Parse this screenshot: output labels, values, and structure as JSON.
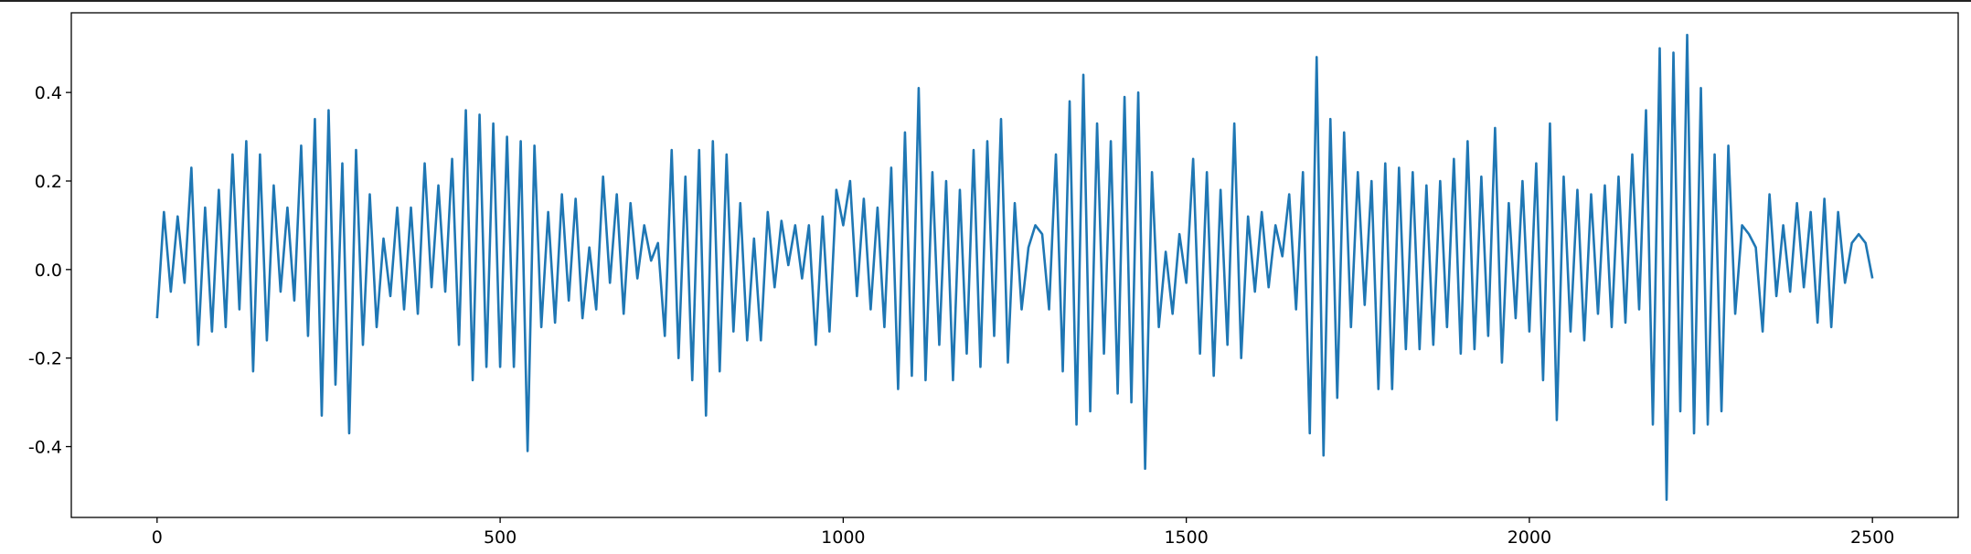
{
  "chart_data": {
    "type": "line",
    "color": "#1f77b4",
    "x": [
      0,
      10,
      20,
      30,
      40,
      50,
      60,
      70,
      80,
      90,
      100,
      110,
      120,
      130,
      140,
      150,
      160,
      170,
      180,
      190,
      200,
      210,
      220,
      230,
      240,
      250,
      260,
      270,
      280,
      290,
      300,
      310,
      320,
      330,
      340,
      350,
      360,
      370,
      380,
      390,
      400,
      410,
      420,
      430,
      440,
      450,
      460,
      470,
      480,
      490,
      500,
      510,
      520,
      530,
      540,
      550,
      560,
      570,
      580,
      590,
      600,
      610,
      620,
      630,
      640,
      650,
      660,
      670,
      680,
      690,
      700,
      710,
      720,
      730,
      740,
      750,
      760,
      770,
      780,
      790,
      800,
      810,
      820,
      830,
      840,
      850,
      860,
      870,
      880,
      890,
      900,
      910,
      920,
      930,
      940,
      950,
      960,
      970,
      980,
      990,
      1000,
      1010,
      1020,
      1030,
      1040,
      1050,
      1060,
      1070,
      1080,
      1090,
      1100,
      1110,
      1120,
      1130,
      1140,
      1150,
      1160,
      1170,
      1180,
      1190,
      1200,
      1210,
      1220,
      1230,
      1240,
      1250,
      1260,
      1270,
      1280,
      1290,
      1300,
      1310,
      1320,
      1330,
      1340,
      1350,
      1360,
      1370,
      1380,
      1390,
      1400,
      1410,
      1420,
      1430,
      1440,
      1450,
      1460,
      1470,
      1480,
      1490,
      1500,
      1510,
      1520,
      1530,
      1540,
      1550,
      1560,
      1570,
      1580,
      1590,
      1600,
      1610,
      1620,
      1630,
      1640,
      1650,
      1660,
      1670,
      1680,
      1690,
      1700,
      1710,
      1720,
      1730,
      1740,
      1750,
      1760,
      1770,
      1780,
      1790,
      1800,
      1810,
      1820,
      1830,
      1840,
      1850,
      1860,
      1870,
      1880,
      1890,
      1900,
      1910,
      1920,
      1930,
      1940,
      1950,
      1960,
      1970,
      1980,
      1990,
      2000,
      2010,
      2020,
      2030,
      2040,
      2050,
      2060,
      2070,
      2080,
      2090,
      2100,
      2110,
      2120,
      2130,
      2140,
      2150,
      2160,
      2170,
      2180,
      2190,
      2200,
      2210,
      2220,
      2230,
      2240,
      2250,
      2260,
      2270,
      2280,
      2290,
      2300,
      2310,
      2320,
      2330,
      2340,
      2350,
      2360,
      2370,
      2380,
      2390,
      2400,
      2410,
      2420,
      2430,
      2440,
      2450,
      2460,
      2470,
      2480,
      2490,
      2500
    ],
    "values": [
      -0.11,
      0.13,
      -0.05,
      0.12,
      -0.03,
      0.23,
      -0.17,
      0.14,
      -0.14,
      0.18,
      -0.13,
      0.26,
      -0.09,
      0.29,
      -0.23,
      0.26,
      -0.16,
      0.19,
      -0.05,
      0.14,
      -0.07,
      0.28,
      -0.15,
      0.34,
      -0.33,
      0.36,
      -0.26,
      0.24,
      -0.37,
      0.27,
      -0.17,
      0.17,
      -0.13,
      0.07,
      -0.06,
      0.14,
      -0.09,
      0.14,
      -0.1,
      0.24,
      -0.04,
      0.19,
      -0.05,
      0.25,
      -0.17,
      0.36,
      -0.25,
      0.35,
      -0.22,
      0.33,
      -0.22,
      0.3,
      -0.22,
      0.29,
      -0.41,
      0.28,
      -0.13,
      0.13,
      -0.12,
      0.17,
      -0.07,
      0.16,
      -0.11,
      0.05,
      -0.09,
      0.21,
      -0.03,
      0.17,
      -0.1,
      0.15,
      -0.02,
      0.1,
      0.02,
      0.06,
      -0.15,
      0.27,
      -0.2,
      0.21,
      -0.25,
      0.27,
      -0.33,
      0.29,
      -0.23,
      0.26,
      -0.14,
      0.15,
      -0.16,
      0.07,
      -0.16,
      0.13,
      -0.04,
      0.11,
      0.01,
      0.1,
      -0.02,
      0.1,
      -0.17,
      0.12,
      -0.14,
      0.18,
      0.1,
      0.2,
      -0.06,
      0.16,
      -0.09,
      0.14,
      -0.13,
      0.23,
      -0.27,
      0.31,
      -0.24,
      0.41,
      -0.25,
      0.22,
      -0.17,
      0.2,
      -0.25,
      0.18,
      -0.19,
      0.27,
      -0.22,
      0.29,
      -0.15,
      0.34,
      -0.21,
      0.15,
      -0.09,
      0.05,
      0.1,
      0.08,
      -0.09,
      0.26,
      -0.23,
      0.38,
      -0.35,
      0.44,
      -0.32,
      0.33,
      -0.19,
      0.29,
      -0.28,
      0.39,
      -0.3,
      0.4,
      -0.45,
      0.22,
      -0.13,
      0.04,
      -0.1,
      0.08,
      -0.03,
      0.25,
      -0.19,
      0.22,
      -0.24,
      0.18,
      -0.17,
      0.33,
      -0.2,
      0.12,
      -0.05,
      0.13,
      -0.04,
      0.1,
      0.03,
      0.17,
      -0.09,
      0.22,
      -0.37,
      0.48,
      -0.42,
      0.34,
      -0.29,
      0.31,
      -0.13,
      0.22,
      -0.08,
      0.2,
      -0.27,
      0.24,
      -0.27,
      0.23,
      -0.18,
      0.22,
      -0.18,
      0.19,
      -0.17,
      0.2,
      -0.13,
      0.25,
      -0.19,
      0.29,
      -0.18,
      0.21,
      -0.15,
      0.32,
      -0.21,
      0.15,
      -0.11,
      0.2,
      -0.14,
      0.24,
      -0.25,
      0.33,
      -0.34,
      0.21,
      -0.14,
      0.18,
      -0.16,
      0.17,
      -0.1,
      0.19,
      -0.13,
      0.21,
      -0.12,
      0.26,
      -0.09,
      0.36,
      -0.35,
      0.5,
      -0.52,
      0.49,
      -0.32,
      0.53,
      -0.37,
      0.41,
      -0.35,
      0.26,
      -0.32,
      0.28,
      -0.1,
      0.1,
      0.08,
      0.05,
      -0.14,
      0.17,
      -0.06,
      0.1,
      -0.05,
      0.15,
      -0.04,
      0.13,
      -0.12,
      0.16,
      -0.13,
      0.13,
      -0.03,
      0.06,
      0.08,
      0.06,
      -0.02
    ],
    "xlim": [
      -125,
      2625
    ],
    "xticks": [
      0,
      500,
      1000,
      1500,
      2000,
      2500
    ],
    "ylim": [
      -0.56,
      0.58
    ],
    "yticks": [
      -0.4,
      -0.2,
      {
        "value": 0,
        "label": "0.0"
      },
      0.2,
      0.4
    ]
  }
}
